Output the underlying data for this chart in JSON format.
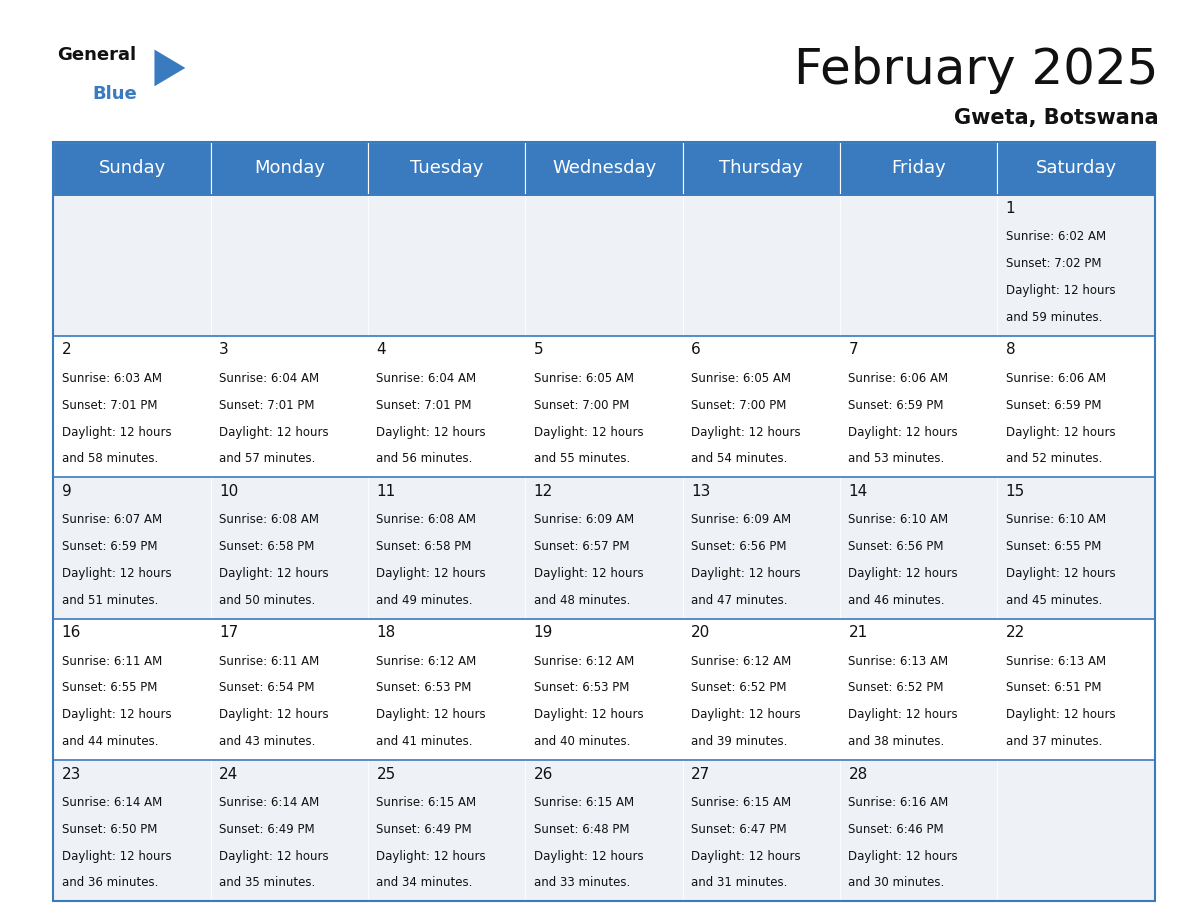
{
  "title": "February 2025",
  "subtitle": "Gweta, Botswana",
  "header_bg_color": "#3a7abf",
  "header_text_color": "#ffffff",
  "cell_bg_light": "#eef2f7",
  "cell_bg_white": "#ffffff",
  "border_color": "#3a7abf",
  "days_of_week": [
    "Sunday",
    "Monday",
    "Tuesday",
    "Wednesday",
    "Thursday",
    "Friday",
    "Saturday"
  ],
  "calendar_data": [
    [
      {
        "day": null
      },
      {
        "day": null
      },
      {
        "day": null
      },
      {
        "day": null
      },
      {
        "day": null
      },
      {
        "day": null
      },
      {
        "day": 1,
        "sunrise": "6:02 AM",
        "sunset": "7:02 PM",
        "daylight_hours": 12,
        "daylight_minutes": 59
      }
    ],
    [
      {
        "day": 2,
        "sunrise": "6:03 AM",
        "sunset": "7:01 PM",
        "daylight_hours": 12,
        "daylight_minutes": 58
      },
      {
        "day": 3,
        "sunrise": "6:04 AM",
        "sunset": "7:01 PM",
        "daylight_hours": 12,
        "daylight_minutes": 57
      },
      {
        "day": 4,
        "sunrise": "6:04 AM",
        "sunset": "7:01 PM",
        "daylight_hours": 12,
        "daylight_minutes": 56
      },
      {
        "day": 5,
        "sunrise": "6:05 AM",
        "sunset": "7:00 PM",
        "daylight_hours": 12,
        "daylight_minutes": 55
      },
      {
        "day": 6,
        "sunrise": "6:05 AM",
        "sunset": "7:00 PM",
        "daylight_hours": 12,
        "daylight_minutes": 54
      },
      {
        "day": 7,
        "sunrise": "6:06 AM",
        "sunset": "6:59 PM",
        "daylight_hours": 12,
        "daylight_minutes": 53
      },
      {
        "day": 8,
        "sunrise": "6:06 AM",
        "sunset": "6:59 PM",
        "daylight_hours": 12,
        "daylight_minutes": 52
      }
    ],
    [
      {
        "day": 9,
        "sunrise": "6:07 AM",
        "sunset": "6:59 PM",
        "daylight_hours": 12,
        "daylight_minutes": 51
      },
      {
        "day": 10,
        "sunrise": "6:08 AM",
        "sunset": "6:58 PM",
        "daylight_hours": 12,
        "daylight_minutes": 50
      },
      {
        "day": 11,
        "sunrise": "6:08 AM",
        "sunset": "6:58 PM",
        "daylight_hours": 12,
        "daylight_minutes": 49
      },
      {
        "day": 12,
        "sunrise": "6:09 AM",
        "sunset": "6:57 PM",
        "daylight_hours": 12,
        "daylight_minutes": 48
      },
      {
        "day": 13,
        "sunrise": "6:09 AM",
        "sunset": "6:56 PM",
        "daylight_hours": 12,
        "daylight_minutes": 47
      },
      {
        "day": 14,
        "sunrise": "6:10 AM",
        "sunset": "6:56 PM",
        "daylight_hours": 12,
        "daylight_minutes": 46
      },
      {
        "day": 15,
        "sunrise": "6:10 AM",
        "sunset": "6:55 PM",
        "daylight_hours": 12,
        "daylight_minutes": 45
      }
    ],
    [
      {
        "day": 16,
        "sunrise": "6:11 AM",
        "sunset": "6:55 PM",
        "daylight_hours": 12,
        "daylight_minutes": 44
      },
      {
        "day": 17,
        "sunrise": "6:11 AM",
        "sunset": "6:54 PM",
        "daylight_hours": 12,
        "daylight_minutes": 43
      },
      {
        "day": 18,
        "sunrise": "6:12 AM",
        "sunset": "6:53 PM",
        "daylight_hours": 12,
        "daylight_minutes": 41
      },
      {
        "day": 19,
        "sunrise": "6:12 AM",
        "sunset": "6:53 PM",
        "daylight_hours": 12,
        "daylight_minutes": 40
      },
      {
        "day": 20,
        "sunrise": "6:12 AM",
        "sunset": "6:52 PM",
        "daylight_hours": 12,
        "daylight_minutes": 39
      },
      {
        "day": 21,
        "sunrise": "6:13 AM",
        "sunset": "6:52 PM",
        "daylight_hours": 12,
        "daylight_minutes": 38
      },
      {
        "day": 22,
        "sunrise": "6:13 AM",
        "sunset": "6:51 PM",
        "daylight_hours": 12,
        "daylight_minutes": 37
      }
    ],
    [
      {
        "day": 23,
        "sunrise": "6:14 AM",
        "sunset": "6:50 PM",
        "daylight_hours": 12,
        "daylight_minutes": 36
      },
      {
        "day": 24,
        "sunrise": "6:14 AM",
        "sunset": "6:49 PM",
        "daylight_hours": 12,
        "daylight_minutes": 35
      },
      {
        "day": 25,
        "sunrise": "6:15 AM",
        "sunset": "6:49 PM",
        "daylight_hours": 12,
        "daylight_minutes": 34
      },
      {
        "day": 26,
        "sunrise": "6:15 AM",
        "sunset": "6:48 PM",
        "daylight_hours": 12,
        "daylight_minutes": 33
      },
      {
        "day": 27,
        "sunrise": "6:15 AM",
        "sunset": "6:47 PM",
        "daylight_hours": 12,
        "daylight_minutes": 31
      },
      {
        "day": 28,
        "sunrise": "6:16 AM",
        "sunset": "6:46 PM",
        "daylight_hours": 12,
        "daylight_minutes": 30
      },
      {
        "day": null
      }
    ]
  ],
  "logo_triangle_color": "#3a7abf",
  "title_fontsize": 36,
  "subtitle_fontsize": 15,
  "header_fontsize": 13,
  "day_number_fontsize": 11,
  "info_fontsize": 8.5
}
